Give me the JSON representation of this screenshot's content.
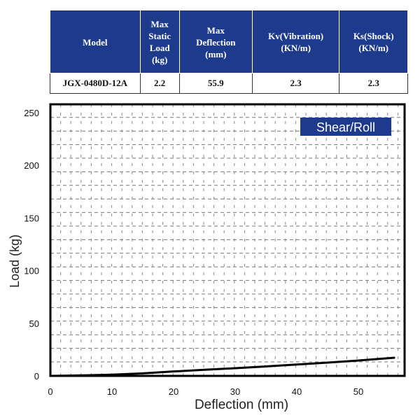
{
  "spec_table": {
    "headers": [
      "Model",
      "Max Static Load (kg)",
      "Max Deflection (mm)",
      "Kv(Vibration) (KN/m)",
      "Ks(Shock) (KN/m)"
    ],
    "header_lines": [
      [
        "Model"
      ],
      [
        "Max",
        "Static",
        "Load",
        "(kg)"
      ],
      [
        "Max",
        "Deflection",
        "(mm)"
      ],
      [
        "Kv(Vibration)",
        "(KN/m)"
      ],
      [
        "Ks(Shock)",
        "(KN/m)"
      ]
    ],
    "rows": [
      [
        "JGX-0480D-12A",
        "2.2",
        "55.9",
        "2.3",
        "2.3"
      ]
    ],
    "header_color": "#1e3a8c"
  },
  "chart_data": {
    "type": "line",
    "title": "",
    "annotation": "Shear/Roll",
    "annotation_color": "#1e3a8c",
    "xlabel": "Deflection (mm)",
    "ylabel": "Load (kg)",
    "xlim": [
      0,
      57.5
    ],
    "ylim": [
      0,
      258
    ],
    "xticks": [
      0,
      10,
      20,
      30,
      40,
      50
    ],
    "yticks": [
      0,
      50,
      100,
      150,
      200,
      250
    ],
    "grid": true,
    "series": [
      {
        "x": [
          0,
          5,
          10,
          15,
          20,
          25,
          30,
          35,
          40,
          45,
          50,
          55.9
        ],
        "y": [
          0,
          0.5,
          1.2,
          2.4,
          4.2,
          5.8,
          7.3,
          9.0,
          10.8,
          12.6,
          14.6,
          17.3
        ]
      }
    ]
  }
}
